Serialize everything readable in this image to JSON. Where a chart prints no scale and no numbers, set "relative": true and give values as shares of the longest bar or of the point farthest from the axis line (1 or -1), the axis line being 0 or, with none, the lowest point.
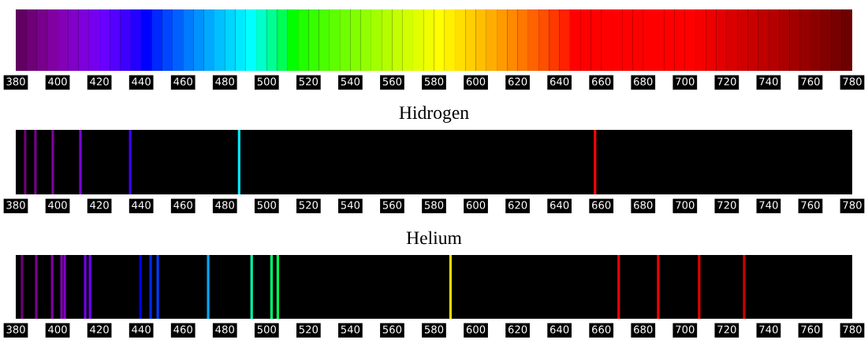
{
  "chart_data": [
    {
      "type": "bar",
      "relative": true,
      "x": [
        382.5,
        387.5,
        392.5,
        397.5,
        402.5,
        407.5,
        412.5,
        417.5,
        422.5,
        427.5,
        432.5,
        437.5,
        442.5,
        447.5,
        452.5,
        457.5,
        462.5,
        467.5,
        472.5,
        477.5,
        482.5,
        487.5,
        492.5,
        497.5,
        502.5,
        507.5,
        512.5,
        517.5,
        522.5,
        527.5,
        532.5,
        537.5,
        542.5,
        547.5,
        552.5,
        557.5,
        562.5,
        567.5,
        572.5,
        577.5,
        582.5,
        587.5,
        592.5,
        597.5,
        602.5,
        607.5,
        612.5,
        617.5,
        622.5,
        627.5,
        632.5,
        637.5,
        642.5,
        647.5,
        652.5,
        657.5,
        662.5,
        667.5,
        672.5,
        677.5,
        682.5,
        687.5,
        692.5,
        697.5,
        702.5,
        707.5,
        712.5,
        717.5,
        722.5,
        727.5,
        732.5,
        737.5,
        742.5,
        747.5,
        752.5,
        757.5,
        762.5,
        767.5,
        772.5,
        777.5
      ],
      "values": [
        1,
        1,
        1,
        1,
        1,
        1,
        1,
        1,
        1,
        1,
        1,
        1,
        1,
        1,
        1,
        1,
        1,
        1,
        1,
        1,
        1,
        1,
        1,
        1,
        1,
        1,
        1,
        1,
        1,
        1,
        1,
        1,
        1,
        1,
        1,
        1,
        1,
        1,
        1,
        1,
        1,
        1,
        1,
        1,
        1,
        1,
        1,
        1,
        1,
        1,
        1,
        1,
        1,
        1,
        1,
        1,
        1,
        1,
        1,
        1,
        1,
        1,
        1,
        1,
        1,
        1,
        1,
        1,
        1,
        1,
        1,
        1,
        1,
        1,
        1,
        1,
        1,
        1,
        1,
        1
      ],
      "colors": [
        "#610061",
        "#6f0077",
        "#79008c",
        "#8000a1",
        "#8300b5",
        "#8200c8",
        "#7e00db",
        "#7600ed",
        "#6a00ff",
        "#5400ff",
        "#3d00ff",
        "#2300ff",
        "#0000ff",
        "#0028ff",
        "#0046ff",
        "#0061ff",
        "#007bff",
        "#0092ff",
        "#00a9ff",
        "#00c0ff",
        "#00d5ff",
        "#00eaff",
        "#00ffff",
        "#00ffca",
        "#00ff92",
        "#00ff54",
        "#00ff00",
        "#1fff00",
        "#36ff00",
        "#4aff00",
        "#5eff00",
        "#70ff00",
        "#81ff00",
        "#92ff00",
        "#a3ff00",
        "#b3ff00",
        "#c3ff00",
        "#d2ff00",
        "#e1ff00",
        "#f0ff00",
        "#ffff00",
        "#ffef00",
        "#ffdf00",
        "#ffcf00",
        "#ffbe00",
        "#ffad00",
        "#ff9b00",
        "#ff8900",
        "#ff7700",
        "#ff6300",
        "#ff4f00",
        "#ff3900",
        "#ff2100",
        "#ff0000",
        "#ff0000",
        "#ff0000",
        "#ff0000",
        "#ff0000",
        "#ff0000",
        "#ff0000",
        "#ff0000",
        "#ff0000",
        "#ff0000",
        "#ff0000",
        "#ff0000",
        "#f60000",
        "#ed0000",
        "#e40000",
        "#da0000",
        "#d10000",
        "#c80000",
        "#be0000",
        "#b50000",
        "#ab0000",
        "#a10000",
        "#970000",
        "#8c0000",
        "#820000",
        "#770000",
        "#6d0000"
      ],
      "xlim": [
        380,
        780
      ],
      "xticks": [
        380,
        400,
        420,
        440,
        460,
        480,
        500,
        520,
        540,
        560,
        580,
        600,
        620,
        640,
        660,
        680,
        700,
        720,
        740,
        760,
        780
      ],
      "grid": false,
      "legend": false
    },
    {
      "type": "bar",
      "relative": true,
      "title": "Hidrogen",
      "x": [
        384.5,
        389.4,
        397.7,
        410.9,
        434.7,
        486.8,
        657
      ],
      "values": [
        1,
        1,
        1,
        1,
        1,
        1,
        1
      ],
      "colors": [
        "#6f0077",
        "#79008c",
        "#8000a1",
        "#7e00db",
        "#3d00ff",
        "#00eaff",
        "#ff0000"
      ],
      "xlim": [
        380,
        780
      ],
      "xticks": [
        380,
        400,
        420,
        440,
        460,
        480,
        500,
        520,
        540,
        560,
        580,
        600,
        620,
        640,
        660,
        680,
        700,
        720,
        740,
        760,
        780
      ],
      "grid": false,
      "legend": false
    },
    {
      "type": "bar",
      "relative": true,
      "title": "Helium",
      "x": [
        383,
        389.8,
        397.4,
        401.9,
        403.4,
        413.2,
        415.5,
        439.6,
        444.5,
        447.9,
        472,
        492.8,
        502.3,
        505.3,
        587.9,
        668.3,
        687.2,
        706.8,
        728.3
      ],
      "values": [
        1,
        1,
        1,
        1,
        1,
        1,
        1,
        1,
        1,
        1,
        1,
        1,
        1,
        1,
        1,
        1,
        1,
        1,
        1
      ],
      "colors": [
        "#6f0077",
        "#79008c",
        "#8000a1",
        "#8300b5",
        "#8200c8",
        "#7600ed",
        "#7000f5",
        "#0000ff",
        "#0028ff",
        "#003cff",
        "#00a9ff",
        "#00ffb0",
        "#00ff70",
        "#00ff54",
        "#ffd800",
        "#ff0000",
        "#f00000",
        "#e40000",
        "#cc0000"
      ],
      "xlim": [
        380,
        780
      ],
      "xticks": [
        380,
        400,
        420,
        440,
        460,
        480,
        500,
        520,
        540,
        560,
        580,
        600,
        620,
        640,
        660,
        680,
        700,
        720,
        740,
        760,
        780
      ],
      "grid": false,
      "legend": false
    }
  ]
}
